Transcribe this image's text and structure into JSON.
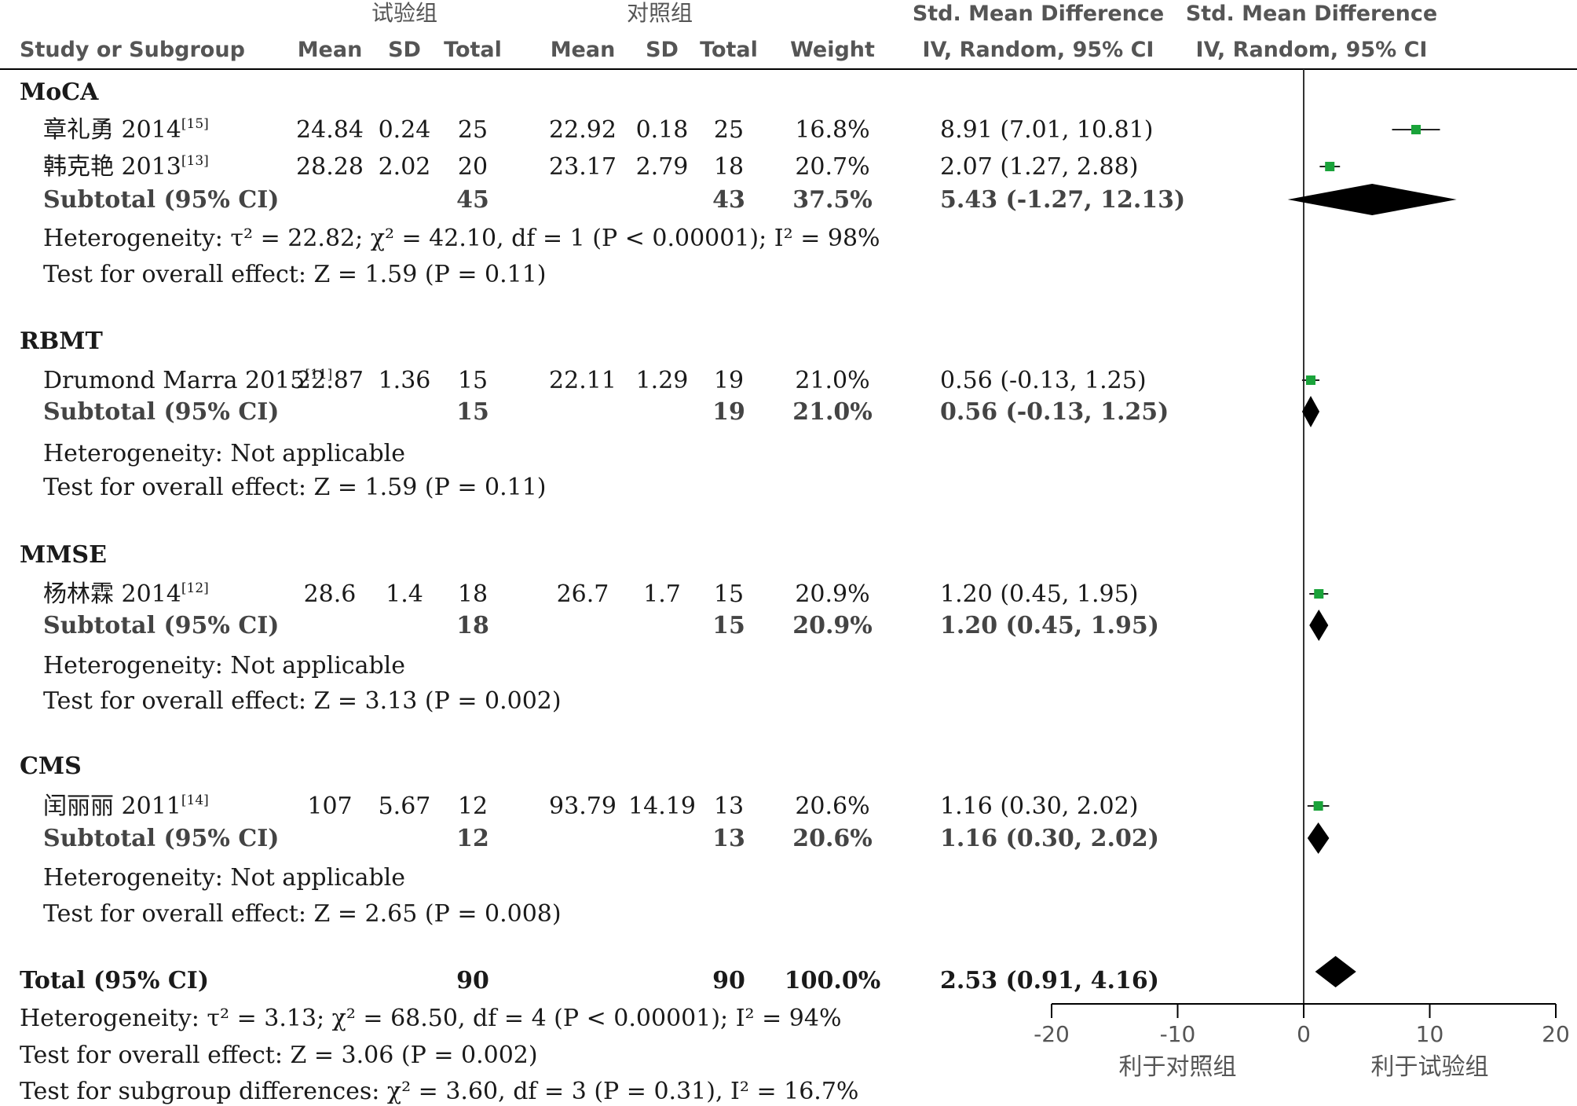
{
  "chart_data": {
    "type": "forest",
    "group_labels": [
      "试验组",
      "对照组"
    ],
    "columns": {
      "study": "Study or Subgroup",
      "mean": "Mean",
      "sd": "SD",
      "total": "Total",
      "weight": "Weight",
      "effect_title": "Std. Mean Difference",
      "effect_method": "IV, Random, 95% CI"
    },
    "xlim": [
      -20,
      20
    ],
    "xticks": [
      "-20",
      "-10",
      "0",
      "10",
      "20"
    ],
    "favours_left": "利于对照组",
    "favours_right": "利于试验组",
    "subgroups": [
      {
        "name": "MoCA",
        "studies": [
          {
            "study": "章礼勇 2014",
            "ref": "[15]",
            "exp_mean": "24.84",
            "exp_sd": "0.24",
            "exp_total": "25",
            "ctl_mean": "22.92",
            "ctl_sd": "0.18",
            "ctl_total": "25",
            "weight": "16.8%",
            "ci_text": "8.91 (7.01, 10.81)",
            "smd": 8.91,
            "lo": 7.01,
            "hi": 10.81
          },
          {
            "study": "韩克艳 2013",
            "ref": "[13]",
            "exp_mean": "28.28",
            "exp_sd": "2.02",
            "exp_total": "20",
            "ctl_mean": "23.17",
            "ctl_sd": "2.79",
            "ctl_total": "18",
            "weight": "20.7%",
            "ci_text": "2.07 (1.27, 2.88)",
            "smd": 2.07,
            "lo": 1.27,
            "hi": 2.88
          }
        ],
        "subtotal": {
          "label": "Subtotal (95% CI)",
          "exp_total": "45",
          "ctl_total": "43",
          "weight": "37.5%",
          "ci_text": "5.43 (-1.27, 12.13)",
          "smd": 5.43,
          "lo": -1.27,
          "hi": 12.13
        },
        "heterogeneity": "Heterogeneity: τ² = 22.82; χ² = 42.10, df = 1 (P < 0.00001); I² = 98%",
        "overall": "Test for overall effect: Z = 1.59 (P = 0.11)"
      },
      {
        "name": "RBMT",
        "studies": [
          {
            "study": "Drumond Marra 2015",
            "ref": "[11]",
            "exp_mean": "22.87",
            "exp_sd": "1.36",
            "exp_total": "15",
            "ctl_mean": "22.11",
            "ctl_sd": "1.29",
            "ctl_total": "19",
            "weight": "21.0%",
            "ci_text": "0.56 (-0.13, 1.25)",
            "smd": 0.56,
            "lo": -0.13,
            "hi": 1.25
          }
        ],
        "subtotal": {
          "label": "Subtotal (95% CI)",
          "exp_total": "15",
          "ctl_total": "19",
          "weight": "21.0%",
          "ci_text": "0.56 (-0.13, 1.25)",
          "smd": 0.56,
          "lo": -0.13,
          "hi": 1.25
        },
        "heterogeneity": "Heterogeneity: Not applicable",
        "overall": "Test for overall effect: Z = 1.59 (P = 0.11)"
      },
      {
        "name": "MMSE",
        "studies": [
          {
            "study": "杨林霖 2014",
            "ref": "[12]",
            "exp_mean": "28.6",
            "exp_sd": "1.4",
            "exp_total": "18",
            "ctl_mean": "26.7",
            "ctl_sd": "1.7",
            "ctl_total": "15",
            "weight": "20.9%",
            "ci_text": "1.20 (0.45, 1.95)",
            "smd": 1.2,
            "lo": 0.45,
            "hi": 1.95
          }
        ],
        "subtotal": {
          "label": "Subtotal (95% CI)",
          "exp_total": "18",
          "ctl_total": "15",
          "weight": "20.9%",
          "ci_text": "1.20 (0.45, 1.95)",
          "smd": 1.2,
          "lo": 0.45,
          "hi": 1.95
        },
        "heterogeneity": "Heterogeneity: Not applicable",
        "overall": "Test for overall effect: Z = 3.13 (P = 0.002)"
      },
      {
        "name": "CMS",
        "studies": [
          {
            "study": "闰丽丽 2011",
            "ref": "[14]",
            "exp_mean": "107",
            "exp_sd": "5.67",
            "exp_total": "12",
            "ctl_mean": "93.79",
            "ctl_sd": "14.19",
            "ctl_total": "13",
            "weight": "20.6%",
            "ci_text": "1.16 (0.30, 2.02)",
            "smd": 1.16,
            "lo": 0.3,
            "hi": 2.02
          }
        ],
        "subtotal": {
          "label": "Subtotal (95% CI)",
          "exp_total": "12",
          "ctl_total": "13",
          "weight": "20.6%",
          "ci_text": "1.16 (0.30, 2.02)",
          "smd": 1.16,
          "lo": 0.3,
          "hi": 2.02
        },
        "heterogeneity": "Heterogeneity: Not applicable",
        "overall": "Test for overall effect: Z = 2.65 (P = 0.008)"
      }
    ],
    "total": {
      "label": "Total (95% CI)",
      "exp_total": "90",
      "ctl_total": "90",
      "weight": "100.0%",
      "ci_text": "2.53 (0.91, 4.16)",
      "smd": 2.53,
      "lo": 0.91,
      "hi": 4.16
    },
    "footer": [
      "Heterogeneity: τ² = 3.13; χ² = 68.50, df = 4 (P < 0.00001); I² = 94%",
      "Test for overall effect: Z = 3.06 (P = 0.002)",
      "Test for subgroup differences: χ² = 3.60, df = 3 (P = 0.31), I² = 16.7%"
    ]
  },
  "colors": {
    "study_marker": "#1aa33a",
    "diamond": "#000000",
    "text": "#1a1a1a",
    "header_text": "#555555"
  }
}
